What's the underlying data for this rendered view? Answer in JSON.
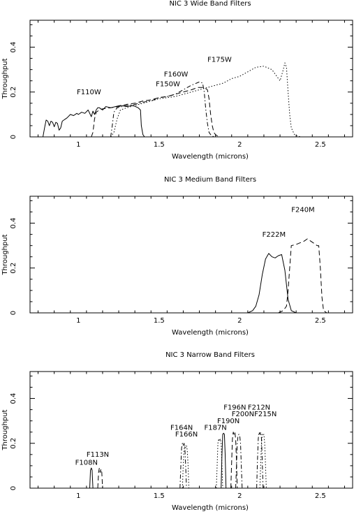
{
  "chart_data": [
    {
      "type": "line",
      "title": "NIC 3 Wide Band Filters",
      "xlabel": "Wavelength (microns)",
      "ylabel": "Throughput",
      "xlim": [
        0.7,
        2.7
      ],
      "ylim": [
        0,
        0.52
      ],
      "xticks": [
        1,
        1.5,
        2,
        2.5
      ],
      "xtick_labels": [
        "1",
        "1.5",
        "2",
        "2.5"
      ],
      "yticks": [
        0,
        0.2,
        0.4
      ],
      "ytick_labels": [
        "0",
        "0.2",
        "0.4"
      ],
      "series": [
        {
          "name": "F110W",
          "style": "solid",
          "label_at": [
            0.99,
            0.19
          ],
          "x": [
            0.78,
            0.79,
            0.8,
            0.81,
            0.82,
            0.83,
            0.84,
            0.85,
            0.86,
            0.87,
            0.88,
            0.89,
            0.9,
            0.91,
            0.92,
            0.93,
            0.95,
            0.97,
            0.99,
            1.0,
            1.02,
            1.04,
            1.06,
            1.08,
            1.09,
            1.1,
            1.11,
            1.12,
            1.13,
            1.15,
            1.17,
            1.2,
            1.23,
            1.26,
            1.3,
            1.34,
            1.37,
            1.385,
            1.39,
            1.4,
            1.41
          ],
          "y": [
            0.0,
            0.04,
            0.075,
            0.07,
            0.05,
            0.07,
            0.065,
            0.045,
            0.065,
            0.06,
            0.03,
            0.04,
            0.07,
            0.075,
            0.08,
            0.085,
            0.1,
            0.095,
            0.105,
            0.1,
            0.11,
            0.105,
            0.12,
            0.09,
            0.115,
            0.1,
            0.12,
            0.13,
            0.13,
            0.12,
            0.135,
            0.13,
            0.135,
            0.14,
            0.135,
            0.14,
            0.13,
            0.12,
            0.05,
            0.01,
            0.0
          ]
        },
        {
          "name": "F150W",
          "style": "dashed",
          "label_at": [
            1.48,
            0.225
          ],
          "x": [
            1.08,
            1.09,
            1.1,
            1.11,
            1.13,
            1.15,
            1.2,
            1.25,
            1.3,
            1.35,
            1.4,
            1.45,
            1.5,
            1.55,
            1.6,
            1.65,
            1.7,
            1.74,
            1.78,
            1.8,
            1.81,
            1.82,
            1.83,
            1.84,
            1.85,
            1.87
          ],
          "y": [
            0.0,
            0.02,
            0.08,
            0.11,
            0.12,
            0.125,
            0.13,
            0.135,
            0.145,
            0.15,
            0.16,
            0.165,
            0.175,
            0.18,
            0.19,
            0.2,
            0.21,
            0.22,
            0.22,
            0.21,
            0.17,
            0.1,
            0.05,
            0.02,
            0.01,
            0.0
          ]
        },
        {
          "name": "F160W",
          "style": "dashdot",
          "label_at": [
            1.53,
            0.27
          ],
          "x": [
            1.2,
            1.21,
            1.22,
            1.24,
            1.3,
            1.35,
            1.4,
            1.45,
            1.5,
            1.55,
            1.6,
            1.65,
            1.7,
            1.75,
            1.77,
            1.78,
            1.79,
            1.8,
            1.81,
            1.82,
            1.84
          ],
          "y": [
            0.0,
            0.05,
            0.11,
            0.13,
            0.14,
            0.145,
            0.155,
            0.16,
            0.175,
            0.18,
            0.19,
            0.21,
            0.23,
            0.245,
            0.24,
            0.2,
            0.12,
            0.06,
            0.02,
            0.01,
            0.0
          ]
        },
        {
          "name": "F175W",
          "style": "dotted",
          "label_at": [
            1.8,
            0.335
          ],
          "x": [
            1.2,
            1.22,
            1.24,
            1.26,
            1.3,
            1.4,
            1.5,
            1.6,
            1.7,
            1.8,
            1.85,
            1.9,
            1.95,
            2.0,
            2.05,
            2.1,
            2.15,
            2.2,
            2.23,
            2.25,
            2.27,
            2.28,
            2.29,
            2.3,
            2.31,
            2.32,
            2.34,
            2.36,
            2.38
          ],
          "y": [
            0.0,
            0.02,
            0.08,
            0.12,
            0.13,
            0.15,
            0.17,
            0.18,
            0.2,
            0.22,
            0.23,
            0.24,
            0.26,
            0.27,
            0.29,
            0.31,
            0.315,
            0.3,
            0.27,
            0.25,
            0.3,
            0.33,
            0.31,
            0.2,
            0.1,
            0.04,
            0.01,
            0.003,
            0.0
          ]
        }
      ]
    },
    {
      "type": "line",
      "title": "NIC 3 Medium Band Filters",
      "xlabel": "Wavelength (microns)",
      "ylabel": "Throughput",
      "xlim": [
        0.7,
        2.7
      ],
      "ylim": [
        0,
        0.52
      ],
      "xticks": [
        1,
        1.5,
        2,
        2.5
      ],
      "xtick_labels": [
        "1",
        "1.5",
        "2",
        "2.5"
      ],
      "yticks": [
        0,
        0.2,
        0.4
      ],
      "ytick_labels": [
        "0",
        "0.2",
        "0.4"
      ],
      "series": [
        {
          "name": "F222M",
          "style": "solid",
          "label_at": [
            2.14,
            0.34
          ],
          "x": [
            2.05,
            2.08,
            2.1,
            2.12,
            2.14,
            2.16,
            2.18,
            2.2,
            2.22,
            2.24,
            2.26,
            2.28,
            2.3,
            2.32,
            2.35
          ],
          "y": [
            0.0,
            0.01,
            0.03,
            0.08,
            0.17,
            0.24,
            0.265,
            0.25,
            0.245,
            0.255,
            0.26,
            0.19,
            0.06,
            0.01,
            0.0
          ]
        },
        {
          "name": "F240M",
          "style": "dashed",
          "label_at": [
            2.32,
            0.45
          ],
          "x": [
            2.24,
            2.27,
            2.29,
            2.3,
            2.31,
            2.32,
            2.35,
            2.4,
            2.42,
            2.44,
            2.46,
            2.48,
            2.49,
            2.5,
            2.51,
            2.52,
            2.54
          ],
          "y": [
            0.0,
            0.01,
            0.03,
            0.1,
            0.2,
            0.3,
            0.305,
            0.32,
            0.33,
            0.32,
            0.31,
            0.3,
            0.3,
            0.2,
            0.07,
            0.01,
            0.0
          ]
        }
      ]
    },
    {
      "type": "line",
      "title": "NIC 3 Narrow Band Filters",
      "xlabel": "Wavelength (microns)",
      "ylabel": "Throughput",
      "xlim": [
        0.7,
        2.7
      ],
      "ylim": [
        0,
        0.52
      ],
      "xticks": [
        1,
        1.5,
        2,
        2.5
      ],
      "xtick_labels": [
        "1",
        "1.5",
        "2",
        "2.5"
      ],
      "yticks": [
        0,
        0.2,
        0.4
      ],
      "ytick_labels": [
        "0",
        "0.2",
        "0.4"
      ],
      "series": [
        {
          "name": "F108N",
          "style": "solid",
          "label_at": [
            0.98,
            0.105
          ],
          "x": [
            1.07,
            1.075,
            1.08,
            1.085,
            1.09
          ],
          "y": [
            0.0,
            0.08,
            0.09,
            0.08,
            0.0
          ]
        },
        {
          "name": "F113N",
          "style": "dashed",
          "label_at": [
            1.05,
            0.14
          ],
          "x": [
            1.12,
            1.125,
            1.13,
            1.135,
            1.14,
            1.145,
            1.15
          ],
          "y": [
            0.0,
            0.07,
            0.09,
            0.07,
            0.085,
            0.07,
            0.0
          ]
        },
        {
          "name": "F164N",
          "style": "dashdot",
          "label_at": [
            1.57,
            0.26
          ],
          "x": [
            1.63,
            1.635,
            1.64,
            1.645,
            1.65,
            1.655,
            1.66,
            1.665,
            1.67
          ],
          "y": [
            0.0,
            0.1,
            0.18,
            0.2,
            0.19,
            0.2,
            0.18,
            0.1,
            0.0
          ]
        },
        {
          "name": "F166N",
          "style": "dotted",
          "label_at": [
            1.6,
            0.23
          ],
          "x": [
            1.645,
            1.65,
            1.655,
            1.66,
            1.665,
            1.67,
            1.675,
            1.68,
            1.685
          ],
          "y": [
            0.0,
            0.1,
            0.17,
            0.19,
            0.18,
            0.19,
            0.17,
            0.1,
            0.0
          ]
        },
        {
          "name": "F187N",
          "style": "dotted",
          "label_at": [
            1.78,
            0.26
          ],
          "x": [
            1.855,
            1.86,
            1.865,
            1.87,
            1.875,
            1.88,
            1.885,
            1.89,
            1.895
          ],
          "y": [
            0.0,
            0.1,
            0.2,
            0.22,
            0.21,
            0.22,
            0.2,
            0.1,
            0.0
          ]
        },
        {
          "name": "F190N",
          "style": "solid",
          "label_at": [
            1.86,
            0.29
          ],
          "x": [
            1.885,
            1.89,
            1.895,
            1.9,
            1.905,
            1.91,
            1.915
          ],
          "y": [
            0.0,
            0.15,
            0.24,
            0.245,
            0.24,
            0.15,
            0.0
          ]
        },
        {
          "name": "F196N",
          "style": "dashed",
          "label_at": [
            1.9,
            0.35
          ],
          "x": [
            1.945,
            1.95,
            1.955,
            1.96,
            1.965,
            1.97,
            1.975,
            1.98,
            1.985
          ],
          "y": [
            0.0,
            0.12,
            0.22,
            0.25,
            0.24,
            0.25,
            0.22,
            0.12,
            0.0
          ]
        },
        {
          "name": "F200N",
          "style": "dashdot",
          "label_at": [
            1.95,
            0.32
          ],
          "x": [
            1.975,
            1.98,
            1.985,
            1.99,
            1.995,
            2.0,
            2.005,
            2.01,
            2.015
          ],
          "y": [
            0.0,
            0.1,
            0.2,
            0.235,
            0.24,
            0.235,
            0.2,
            0.1,
            0.0
          ]
        },
        {
          "name": "F212N",
          "style": "dashdot",
          "label_at": [
            2.05,
            0.35
          ],
          "x": [
            2.105,
            2.11,
            2.115,
            2.12,
            2.125,
            2.13,
            2.135,
            2.14,
            2.145
          ],
          "y": [
            0.0,
            0.12,
            0.22,
            0.25,
            0.24,
            0.25,
            0.22,
            0.12,
            0.0
          ]
        },
        {
          "name": "F215N",
          "style": "dotted",
          "label_at": [
            2.09,
            0.32
          ],
          "x": [
            2.125,
            2.13,
            2.135,
            2.14,
            2.145,
            2.15,
            2.155,
            2.16,
            2.165
          ],
          "y": [
            0.0,
            0.1,
            0.2,
            0.24,
            0.235,
            0.24,
            0.2,
            0.1,
            0.0
          ]
        }
      ]
    }
  ]
}
